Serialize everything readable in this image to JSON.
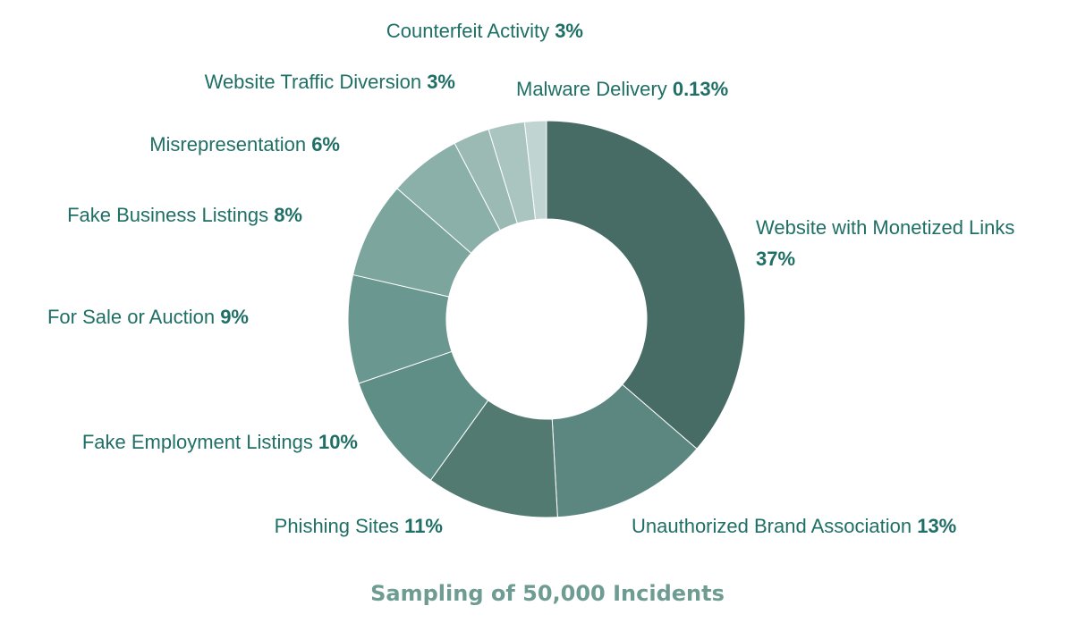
{
  "chart_data": {
    "type": "pie",
    "donut": true,
    "caption": "Sampling of 50,000 Incidents",
    "slices": [
      {
        "label": "Website with Monetized Links",
        "value": 37,
        "value_label": "37%",
        "color": "#476b65"
      },
      {
        "label": "Unauthorized Brand Association",
        "value": 13,
        "value_label": "13%",
        "color": "#5b8780"
      },
      {
        "label": "Phishing Sites",
        "value": 11,
        "value_label": "11%",
        "color": "#527a71"
      },
      {
        "label": "Fake Employment Listings",
        "value": 10,
        "value_label": "10%",
        "color": "#5f8e86"
      },
      {
        "label": "For Sale or Auction",
        "value": 9,
        "value_label": "9%",
        "color": "#6a9890"
      },
      {
        "label": "Fake Business Listings",
        "value": 8,
        "value_label": "8%",
        "color": "#7ca59e"
      },
      {
        "label": "Misrepresentation",
        "value": 6,
        "value_label": "6%",
        "color": "#8ab0a9"
      },
      {
        "label": "Website Traffic Diversion",
        "value": 3,
        "value_label": "3%",
        "color": "#9cbab4"
      },
      {
        "label": "Counterfeit Activity",
        "value": 3,
        "value_label": "3%",
        "color": "#aac5c0"
      },
      {
        "label": "Malware Delivery",
        "value": 0.13,
        "value_label": "0.13%",
        "color": "#c0d5d1"
      }
    ]
  }
}
